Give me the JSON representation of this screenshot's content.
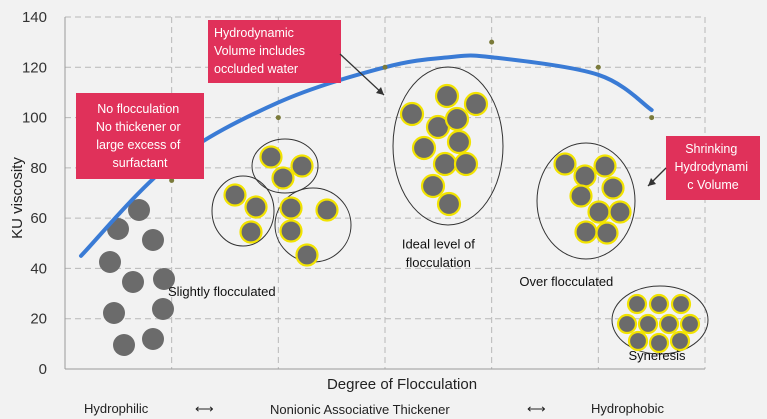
{
  "chart_data": {
    "type": "line",
    "xlabel": "Degree of Flocculation",
    "ylabel": "KU viscosity",
    "ylim": [
      0,
      140
    ],
    "yticks": [
      0,
      20,
      40,
      60,
      80,
      100,
      120,
      140
    ],
    "x_positions": 6,
    "grid": "dashed",
    "series": [
      {
        "type": "line",
        "color": "#3a7bd5",
        "x": [
          0.15,
          1,
          2,
          3,
          3.6,
          4,
          5,
          5.5
        ],
        "y": [
          45,
          82,
          106,
          120,
          124,
          124,
          117,
          103
        ]
      },
      {
        "type": "scatter",
        "color": "#7a7a3a",
        "x": [
          1,
          2,
          3,
          4,
          5,
          5.5
        ],
        "y": [
          75,
          100,
          120,
          130,
          120,
          100
        ]
      }
    ],
    "annotations": [
      {
        "text": "Slightly flocculated",
        "x": 1.47,
        "y": 29
      },
      {
        "text": "Ideal level of",
        "x": 3.5,
        "y": 48
      },
      {
        "text": "flocculation",
        "x": 3.5,
        "y": 40.5
      },
      {
        "text": "Over flocculated",
        "x": 4.7,
        "y": 33
      },
      {
        "text": "Syneresis",
        "x": 5.55,
        "y": 3.5
      }
    ]
  },
  "callouts": {
    "no_floc": [
      "No flocculation",
      "No thickener or",
      "large excess of",
      "surfactant"
    ],
    "hydro": [
      "Hydrodynamic",
      "Volume includes",
      "occluded water"
    ],
    "shrink": [
      "Shrinking",
      "Hydrodynami",
      "c Volume"
    ]
  },
  "bottom": {
    "left": "Hydrophilic",
    "arrow1": "⟷",
    "center": "Nonionic Associative Thickener",
    "arrow2": "⟷",
    "right": "Hydrophobic"
  },
  "colors": {
    "curve": "#3a7bd5",
    "callout_bg": "#e0315a",
    "particle": "#6b6b6b",
    "thickener_ring": "#f2e300"
  }
}
